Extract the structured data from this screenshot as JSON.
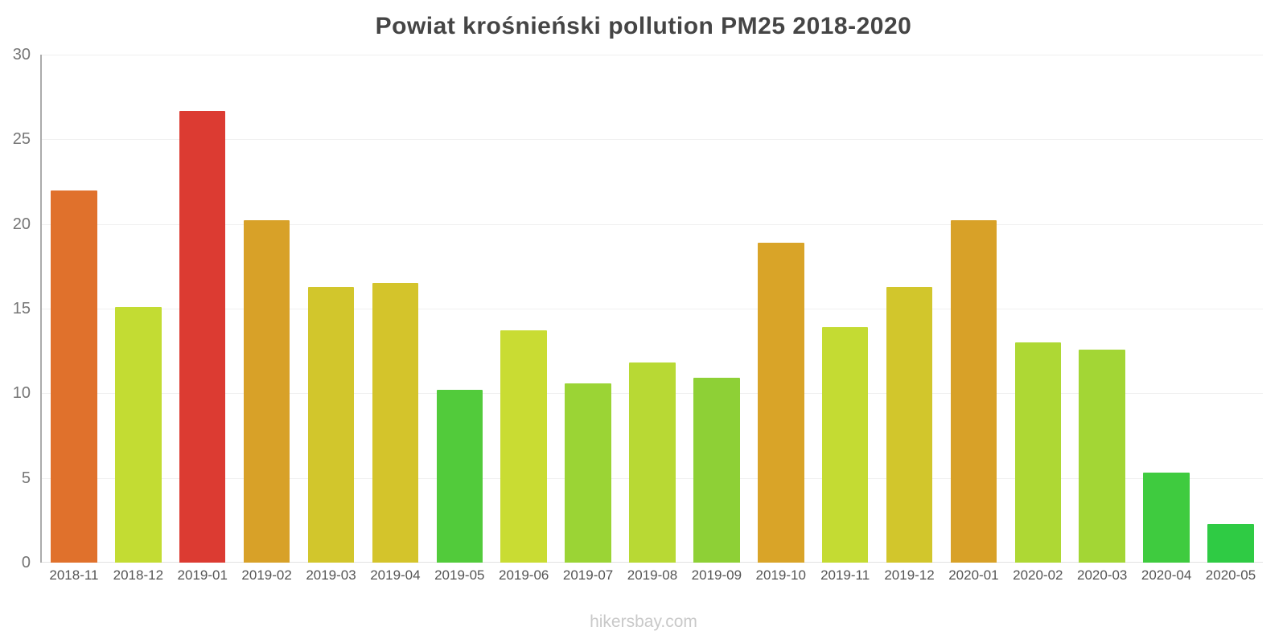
{
  "footer": {
    "text": "hikersbay.com"
  },
  "chart_data": {
    "type": "bar",
    "title": "Powiat krośnieński pollution PM25 2018-2020",
    "xlabel": "",
    "ylabel": "",
    "ylim": [
      0,
      30
    ],
    "yticks": [
      0,
      5,
      10,
      15,
      20,
      25,
      30
    ],
    "grid": true,
    "legend": "none",
    "categories": [
      "2018-11",
      "2018-12",
      "2019-01",
      "2019-02",
      "2019-03",
      "2019-04",
      "2019-05",
      "2019-06",
      "2019-07",
      "2019-08",
      "2019-09",
      "2019-10",
      "2019-11",
      "2019-12",
      "2020-01",
      "2020-02",
      "2020-03",
      "2020-04",
      "2020-05"
    ],
    "values": [
      22.0,
      15.1,
      26.7,
      20.2,
      16.3,
      16.5,
      10.2,
      13.7,
      10.6,
      11.8,
      10.9,
      18.9,
      13.9,
      16.3,
      20.2,
      13.0,
      12.6,
      5.3,
      2.3
    ],
    "colors": [
      "#E0712C",
      "#C3DC33",
      "#DC3B32",
      "#D8A128",
      "#D2C62C",
      "#D4C42B",
      "#52CB3B",
      "#C9DC33",
      "#9BD435",
      "#B8D934",
      "#8ED036",
      "#D9A428",
      "#C4DB33",
      "#D2C62C",
      "#D8A128",
      "#AED834",
      "#A3D635",
      "#3FCB3F",
      "#2FCB44"
    ],
    "axis_color": "#ababab",
    "gridline_color": "#f0f0f0",
    "title_color": "#454545",
    "tick_label_color": "#757575"
  }
}
